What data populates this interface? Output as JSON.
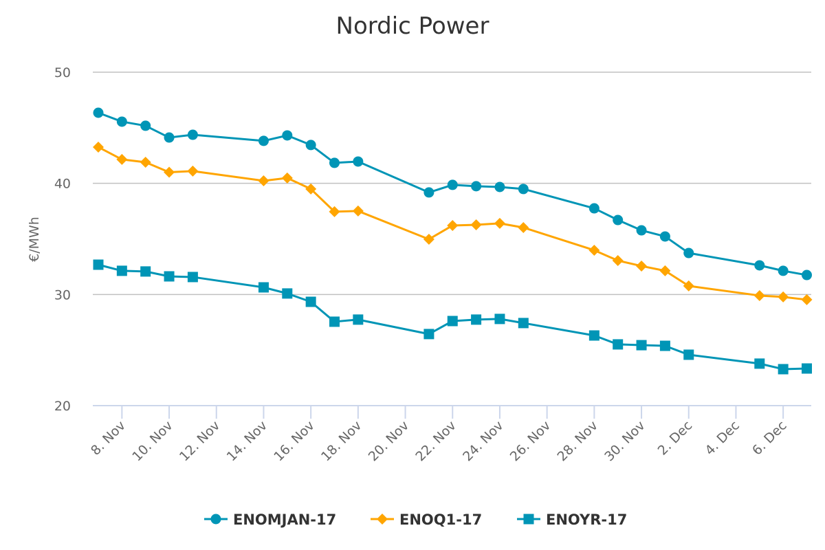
{
  "chart_data": {
    "type": "line",
    "title": "Nordic Power",
    "xlabel": "",
    "ylabel": "€/MWh",
    "ylim": [
      20,
      50
    ],
    "yticks": [
      20,
      30,
      40,
      50
    ],
    "grid": true,
    "legend_position": "bottom",
    "x_day_range": [
      7,
      37
    ],
    "x_tick_labels": [
      {
        "day": 8,
        "label": "8. Nov"
      },
      {
        "day": 10,
        "label": "10. Nov"
      },
      {
        "day": 12,
        "label": "12. Nov"
      },
      {
        "day": 14,
        "label": "14. Nov"
      },
      {
        "day": 16,
        "label": "16. Nov"
      },
      {
        "day": 18,
        "label": "18. Nov"
      },
      {
        "day": 20,
        "label": "20. Nov"
      },
      {
        "day": 22,
        "label": "22. Nov"
      },
      {
        "day": 24,
        "label": "24. Nov"
      },
      {
        "day": 26,
        "label": "26. Nov"
      },
      {
        "day": 28,
        "label": "28. Nov"
      },
      {
        "day": 30,
        "label": "30. Nov"
      },
      {
        "day": 32,
        "label": "2. Dec"
      },
      {
        "day": 34,
        "label": "4. Dec"
      },
      {
        "day": 36,
        "label": "6. Dec"
      }
    ],
    "x": [
      "7. Nov",
      "8. Nov",
      "9. Nov",
      "10. Nov",
      "11. Nov",
      "14. Nov",
      "15. Nov",
      "16. Nov",
      "17. Nov",
      "18. Nov",
      "21. Nov",
      "22. Nov",
      "23. Nov",
      "24. Nov",
      "25. Nov",
      "28. Nov",
      "29. Nov",
      "30. Nov",
      "1. Dec",
      "2. Dec",
      "5. Dec",
      "6. Dec",
      "7. Dec"
    ],
    "x_days": [
      7,
      8,
      9,
      10,
      11,
      14,
      15,
      16,
      17,
      18,
      21,
      22,
      23,
      24,
      25,
      28,
      29,
      30,
      31,
      32,
      35,
      36,
      37
    ],
    "series": [
      {
        "name": "ENOMJAN-17",
        "color": "#0095b6",
        "marker": "circle",
        "values": [
          46.35,
          45.55,
          45.18,
          44.12,
          44.37,
          43.82,
          44.31,
          43.45,
          41.84,
          41.96,
          39.18,
          39.86,
          39.74,
          39.67,
          39.49,
          37.75,
          36.7,
          35.77,
          35.22,
          33.73,
          32.62,
          32.13,
          31.75
        ]
      },
      {
        "name": "ENOQ1-17",
        "color": "#ffa500",
        "marker": "diamond",
        "values": [
          43.26,
          42.15,
          41.9,
          41.0,
          41.1,
          40.23,
          40.48,
          39.49,
          37.45,
          37.51,
          34.97,
          36.21,
          36.27,
          36.4,
          36.02,
          33.98,
          33.05,
          32.56,
          32.13,
          30.77,
          29.9,
          29.78,
          29.53
        ]
      },
      {
        "name": "ENOYR-17",
        "color": "#0095b6",
        "marker": "square",
        "values": [
          32.68,
          32.13,
          32.07,
          31.63,
          31.57,
          30.64,
          30.09,
          29.34,
          27.55,
          27.74,
          26.44,
          27.61,
          27.74,
          27.8,
          27.43,
          26.31,
          25.51,
          25.44,
          25.38,
          24.58,
          23.78,
          23.28,
          23.34
        ]
      }
    ]
  }
}
